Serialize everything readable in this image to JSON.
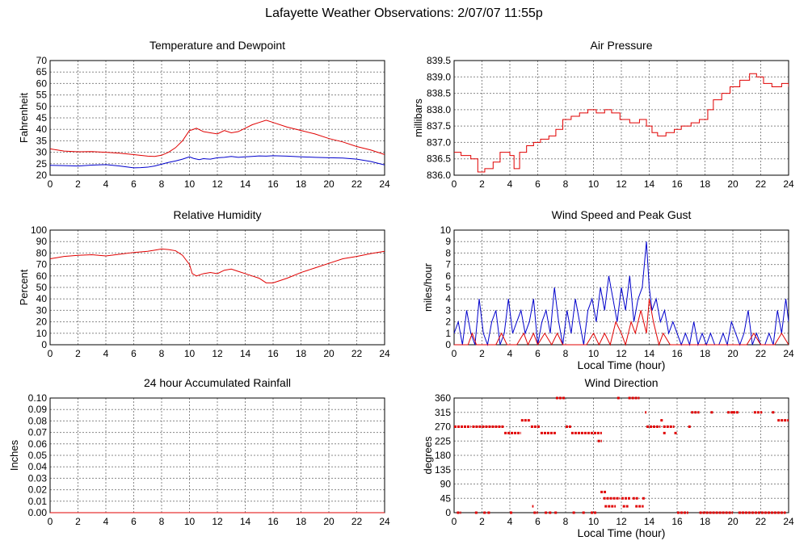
{
  "page": {
    "title": "Lafayette Weather Observations: 2/07/07 11:55p"
  },
  "colors": {
    "red": "#e00000",
    "blue": "#0000cc",
    "grid": "#888888"
  },
  "chart_data": [
    {
      "id": "temp",
      "type": "line",
      "title": "Temperature and Dewpoint",
      "xlabel": "",
      "ylabel": "Fahrenheit",
      "xlim": [
        0,
        24
      ],
      "ylim": [
        20,
        70
      ],
      "xticks": [
        0,
        2,
        4,
        6,
        8,
        10,
        12,
        14,
        16,
        18,
        20,
        22,
        24
      ],
      "yticks": [
        20,
        25,
        30,
        35,
        40,
        45,
        50,
        55,
        60,
        65,
        70
      ],
      "ytick_decimals": 0,
      "grid": true,
      "series": [
        {
          "color": "#e00000",
          "style": "line",
          "x": [
            0,
            1,
            2,
            3,
            4,
            5,
            6,
            7,
            7.5,
            8,
            8.5,
            9,
            9.5,
            10,
            10.2,
            10.5,
            11,
            11.5,
            12,
            12.5,
            13,
            13.5,
            14,
            14.5,
            15,
            15.5,
            16,
            17,
            18,
            19,
            20,
            21,
            22,
            23,
            24
          ],
          "y": [
            31.5,
            30.5,
            30.2,
            30.3,
            30.0,
            29.6,
            29.0,
            28.3,
            28.2,
            28.7,
            30.0,
            32.0,
            35.0,
            39.5,
            39.8,
            40.5,
            39.0,
            38.5,
            38.0,
            39.5,
            38.5,
            39.0,
            40.5,
            42.0,
            43.0,
            44.0,
            43.0,
            41.0,
            39.5,
            38.0,
            36.0,
            34.5,
            32.5,
            31.0,
            29.0
          ]
        },
        {
          "color": "#0000cc",
          "style": "line",
          "x": [
            0,
            1,
            2,
            3,
            4,
            5,
            5.5,
            6,
            6.5,
            7,
            7.5,
            8,
            8.5,
            9,
            9.5,
            10,
            10.3,
            10.7,
            11,
            11.5,
            12,
            12.5,
            13,
            13.5,
            14,
            14.5,
            15,
            15.5,
            16,
            17,
            18,
            19,
            20,
            21,
            22,
            23,
            24
          ],
          "y": [
            24.3,
            24.2,
            24.0,
            24.4,
            24.6,
            24.0,
            23.6,
            23.2,
            23.3,
            23.5,
            24.0,
            24.8,
            25.6,
            26.2,
            27.0,
            28.0,
            27.3,
            26.8,
            27.2,
            27.0,
            27.6,
            27.8,
            28.2,
            27.8,
            28.0,
            28.2,
            28.4,
            28.3,
            28.5,
            28.3,
            28.0,
            27.8,
            27.6,
            27.5,
            27.0,
            26.0,
            24.5
          ]
        }
      ]
    },
    {
      "id": "pressure",
      "type": "line",
      "title": "Air Pressure",
      "xlabel": "",
      "ylabel": "millibars",
      "xlim": [
        0,
        24
      ],
      "ylim": [
        836.0,
        839.5
      ],
      "xticks": [
        0,
        2,
        4,
        6,
        8,
        10,
        12,
        14,
        16,
        18,
        20,
        22,
        24
      ],
      "yticks": [
        836.0,
        836.5,
        837.0,
        837.5,
        838.0,
        838.5,
        839.0,
        839.5
      ],
      "ytick_decimals": 1,
      "grid": true,
      "series": [
        {
          "color": "#e00000",
          "style": "step",
          "x": [
            0,
            0.5,
            1.2,
            1.7,
            2.2,
            2.8,
            3.3,
            4.0,
            4.3,
            4.7,
            5.2,
            5.7,
            6.2,
            6.8,
            7.3,
            7.8,
            8.4,
            9.0,
            9.6,
            10.2,
            10.8,
            11.3,
            11.9,
            12.6,
            13.3,
            13.8,
            14.2,
            14.6,
            15.2,
            15.8,
            16.3,
            17.0,
            17.6,
            18.2,
            18.6,
            19.2,
            19.8,
            20.5,
            21.2,
            21.7,
            22.2,
            22.8,
            23.5,
            24
          ],
          "y": [
            836.7,
            836.6,
            836.5,
            836.1,
            836.2,
            836.4,
            836.7,
            836.6,
            836.2,
            836.7,
            836.9,
            837.0,
            837.1,
            837.2,
            837.4,
            837.7,
            837.8,
            837.9,
            838.0,
            837.9,
            838.0,
            837.9,
            837.7,
            837.6,
            837.7,
            837.5,
            837.3,
            837.2,
            837.3,
            837.4,
            837.5,
            837.6,
            837.7,
            838.0,
            838.3,
            838.5,
            838.7,
            838.9,
            839.1,
            839.0,
            838.8,
            838.7,
            838.8,
            838.7
          ]
        }
      ]
    },
    {
      "id": "humidity",
      "type": "line",
      "title": "Relative Humidity",
      "xlabel": "",
      "ylabel": "Percent",
      "xlim": [
        0,
        24
      ],
      "ylim": [
        0,
        100
      ],
      "xticks": [
        0,
        2,
        4,
        6,
        8,
        10,
        12,
        14,
        16,
        18,
        20,
        22,
        24
      ],
      "yticks": [
        0,
        10,
        20,
        30,
        40,
        50,
        60,
        70,
        80,
        90,
        100
      ],
      "ytick_decimals": 0,
      "grid": true,
      "series": [
        {
          "color": "#e00000",
          "style": "line",
          "x": [
            0,
            0.5,
            1,
            2,
            3,
            4,
            5,
            6,
            7,
            7.5,
            8,
            8.5,
            9,
            9.5,
            10,
            10.2,
            10.5,
            11,
            11.5,
            12,
            12.5,
            13,
            13.5,
            14,
            14.5,
            15,
            15.5,
            16,
            16.5,
            17,
            18,
            19,
            20,
            21,
            22,
            23,
            24
          ],
          "y": [
            75,
            76,
            77,
            78,
            78.5,
            77.5,
            79,
            80.5,
            81.5,
            82.5,
            83.5,
            83,
            82,
            78,
            70,
            62,
            60,
            62,
            63,
            62,
            65,
            66,
            64,
            62,
            60,
            58,
            54,
            54,
            56,
            58,
            63,
            67,
            71,
            75,
            77,
            79.5,
            81.5
          ]
        }
      ]
    },
    {
      "id": "wind",
      "type": "line",
      "title": "Wind Speed and Peak Gust",
      "xlabel": "Local Time (hour)",
      "ylabel": "miles/hour",
      "xlim": [
        0,
        24
      ],
      "ylim": [
        0,
        10
      ],
      "xticks": [
        0,
        2,
        4,
        6,
        8,
        10,
        12,
        14,
        16,
        18,
        20,
        22,
        24
      ],
      "yticks": [
        0,
        1,
        2,
        3,
        4,
        5,
        6,
        7,
        8,
        9,
        10
      ],
      "ytick_decimals": 0,
      "grid": true,
      "series": [
        {
          "color": "#0000cc",
          "style": "line",
          "x": [
            0,
            0.3,
            0.6,
            0.9,
            1.2,
            1.5,
            1.8,
            2.1,
            2.4,
            2.7,
            3.0,
            3.3,
            3.6,
            3.9,
            4.2,
            4.5,
            4.8,
            5.1,
            5.4,
            5.7,
            6.0,
            6.3,
            6.6,
            6.9,
            7.2,
            7.5,
            7.8,
            8.1,
            8.4,
            8.7,
            9.0,
            9.3,
            9.6,
            9.9,
            10.2,
            10.5,
            10.8,
            11.1,
            11.4,
            11.7,
            12.0,
            12.3,
            12.6,
            12.9,
            13.2,
            13.5,
            13.8,
            14.0,
            14.2,
            14.5,
            14.8,
            15.1,
            15.4,
            15.7,
            16.0,
            16.3,
            16.6,
            16.9,
            17.2,
            17.5,
            17.8,
            18.1,
            18.4,
            18.7,
            19.0,
            19.3,
            19.6,
            19.9,
            20.2,
            20.5,
            20.8,
            21.1,
            21.4,
            21.7,
            22.0,
            22.3,
            22.6,
            22.9,
            23.2,
            23.5,
            23.8,
            24.0
          ],
          "y": [
            1,
            2,
            0,
            3,
            1,
            0,
            4,
            1,
            0,
            2,
            3,
            0,
            1,
            4,
            1,
            2,
            3,
            1,
            2,
            4,
            0,
            2,
            3,
            1,
            5,
            2,
            0,
            3,
            1,
            4,
            2,
            0,
            3,
            4,
            2,
            5,
            3,
            6,
            4,
            2,
            5,
            3,
            6,
            2,
            4,
            5,
            9,
            5,
            3,
            4,
            2,
            3,
            1,
            2,
            1,
            0,
            1,
            0,
            2,
            0,
            1,
            0,
            1,
            0,
            0,
            1,
            0,
            2,
            1,
            0,
            1,
            3,
            0,
            1,
            0,
            0,
            1,
            0,
            3,
            1,
            4,
            2
          ],
          "note_skip": true
        },
        {
          "color": "#e00000",
          "style": "line",
          "x": [
            0,
            1.0,
            1.3,
            1.6,
            2.0,
            3.0,
            3.4,
            3.8,
            4.5,
            5.0,
            5.3,
            5.7,
            6.0,
            6.5,
            7.0,
            7.4,
            7.8,
            8.5,
            9.5,
            10.0,
            10.4,
            10.8,
            11.2,
            11.6,
            12.0,
            12.3,
            12.7,
            13.0,
            13.4,
            13.8,
            14.0,
            14.3,
            14.7,
            15.0,
            15.5,
            16.0,
            17.0,
            18.0,
            19.0,
            20.0,
            21.0,
            21.5,
            22.0,
            23.0,
            23.5,
            24.0
          ],
          "y": [
            0,
            0,
            1,
            0,
            0,
            0,
            1,
            0,
            0,
            1,
            0,
            1,
            0,
            1,
            0,
            1,
            0,
            0,
            0,
            1,
            0,
            1,
            0,
            2,
            1,
            0,
            2,
            1,
            3,
            1,
            4,
            2,
            0,
            1,
            0,
            0,
            0,
            0,
            0,
            0,
            0,
            1,
            0,
            0,
            1,
            0
          ]
        }
      ]
    },
    {
      "id": "rain",
      "type": "line",
      "title": "24 hour Accumulated Rainfall",
      "xlabel": "",
      "ylabel": "Inches",
      "xlim": [
        0,
        24
      ],
      "ylim": [
        0,
        0.1
      ],
      "xticks": [
        0,
        2,
        4,
        6,
        8,
        10,
        12,
        14,
        16,
        18,
        20,
        22,
        24
      ],
      "yticks": [
        0.0,
        0.01,
        0.02,
        0.03,
        0.04,
        0.05,
        0.06,
        0.07,
        0.08,
        0.09,
        0.1
      ],
      "ytick_decimals": 2,
      "grid": true,
      "series": [
        {
          "color": "#e00000",
          "style": "line",
          "x": [
            0,
            24
          ],
          "y": [
            0,
            0
          ]
        }
      ]
    },
    {
      "id": "direction",
      "type": "scatter",
      "title": "Wind Direction",
      "xlabel": "Local Time (hour)",
      "ylabel": "degrees",
      "xlim": [
        0,
        24
      ],
      "ylim": [
        0,
        360
      ],
      "xticks": [
        0,
        2,
        4,
        6,
        8,
        10,
        12,
        14,
        16,
        18,
        20,
        22,
        24
      ],
      "yticks": [
        0,
        45,
        90,
        135,
        180,
        225,
        270,
        315,
        360
      ],
      "ytick_decimals": 0,
      "grid": true,
      "series": [
        {
          "color": "#e00000",
          "style": "segments",
          "segments": [
            [
              0.0,
              1.2,
              270
            ],
            [
              0.2,
              0.5,
              0
            ],
            [
              1.3,
              3.6,
              270
            ],
            [
              1.5,
              1.7,
              0
            ],
            [
              2.1,
              2.3,
              0
            ],
            [
              2.4,
              2.6,
              0
            ],
            [
              3.6,
              4.8,
              250
            ],
            [
              4.0,
              4.2,
              0
            ],
            [
              4.8,
              5.5,
              290
            ],
            [
              5.6,
              5.7,
              20
            ],
            [
              5.5,
              6.2,
              270
            ],
            [
              5.7,
              6.0,
              0
            ],
            [
              6.2,
              7.3,
              250
            ],
            [
              6.5,
              6.7,
              0
            ],
            [
              6.8,
              7.0,
              0
            ],
            [
              7.3,
              8.0,
              370
            ],
            [
              7.2,
              7.4,
              0
            ],
            [
              8.0,
              8.4,
              270
            ],
            [
              8.4,
              10.6,
              250
            ],
            [
              8.5,
              8.7,
              0
            ],
            [
              9.2,
              9.4,
              0
            ],
            [
              9.8,
              10.2,
              0
            ],
            [
              10.3,
              10.6,
              225
            ],
            [
              10.5,
              10.9,
              65
            ],
            [
              10.7,
              11.9,
              45
            ],
            [
              10.8,
              11.6,
              20
            ],
            [
              11.7,
              11.9,
              370
            ],
            [
              12.0,
              12.7,
              45
            ],
            [
              12.1,
              12.5,
              20
            ],
            [
              12.5,
              13.3,
              370
            ],
            [
              12.8,
              13.2,
              45
            ],
            [
              13.0,
              13.6,
              20
            ],
            [
              13.5,
              13.7,
              45
            ],
            [
              13.7,
              13.8,
              315
            ],
            [
              13.8,
              14.8,
              270
            ],
            [
              14.8,
              15.0,
              290
            ],
            [
              15.0,
              15.2,
              250
            ],
            [
              15.0,
              15.8,
              270
            ],
            [
              15.8,
              16.0,
              250
            ],
            [
              16.0,
              16.8,
              0
            ],
            [
              16.8,
              17.0,
              270
            ],
            [
              17.0,
              17.6,
              315
            ],
            [
              17.6,
              20.0,
              0
            ],
            [
              18.4,
              18.6,
              315
            ],
            [
              19.6,
              20.0,
              315
            ],
            [
              20.0,
              20.4,
              315
            ],
            [
              20.4,
              23.8,
              0
            ],
            [
              20.4,
              21.0,
              0
            ],
            [
              21.5,
              22.1,
              315
            ],
            [
              22.8,
              23.0,
              315
            ],
            [
              23.2,
              24.0,
              290
            ]
          ]
        }
      ]
    }
  ]
}
